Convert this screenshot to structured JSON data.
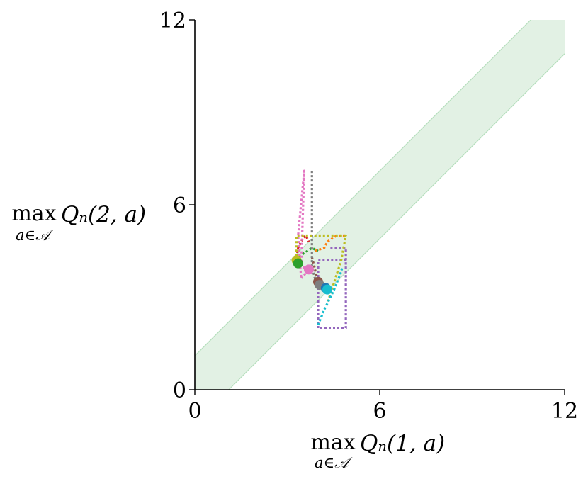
{
  "chart_data": {
    "type": "line",
    "xlim": [
      0,
      12
    ],
    "ylim": [
      0,
      12
    ],
    "x_ticks": [
      "0",
      "6",
      "12"
    ],
    "y_ticks": [
      "0",
      "6",
      "12"
    ],
    "xlabel": {
      "op": "max",
      "sub": "a∈𝒜",
      "expr": "Qₙ(1, a)"
    },
    "ylabel": {
      "op": "max",
      "sub": "a∈𝒜",
      "expr": "Qₙ(2, a)"
    },
    "band": {
      "color": "#cfe8d2",
      "edge_color": "#b6dfbd",
      "offset": 1.1
    },
    "grid": false,
    "legend": "none",
    "series": [
      {
        "color": "#1f77b4",
        "x": [
          4.3,
          4.3
        ],
        "y": [
          3.3,
          3.3
        ]
      },
      {
        "color": "#ff7f0e",
        "x": [
          3.9,
          4.2,
          4.3,
          4.6,
          4.9
        ],
        "y": [
          4.5,
          4.6,
          4.8,
          5.0,
          5.0
        ]
      },
      {
        "color": "#2ca02c",
        "x": [
          3.3,
          3.5,
          3.8,
          4.0
        ],
        "y": [
          4.2,
          4.4,
          4.6,
          4.5
        ]
      },
      {
        "color": "#d62728",
        "x": [
          3.3,
          3.35,
          3.5,
          3.6,
          3.7
        ],
        "y": [
          4.3,
          4.6,
          4.9,
          5.0,
          4.8
        ]
      },
      {
        "color": "#9467bd",
        "x": [
          4.4,
          4.9,
          4.9,
          4.0,
          4.0,
          4.9,
          4.9
        ],
        "y": [
          4.6,
          4.6,
          2.0,
          2.0,
          4.2,
          4.2,
          3.0
        ]
      },
      {
        "color": "#8c564b",
        "x": [
          3.8,
          3.9,
          4.0,
          4.1
        ],
        "y": [
          4.3,
          3.9,
          3.5,
          3.5
        ]
      },
      {
        "color": "#e377c2",
        "x": [
          3.7,
          3.45,
          3.55,
          3.35,
          3.45,
          3.5,
          3.8
        ],
        "y": [
          3.9,
          4.0,
          7.1,
          5.0,
          3.6,
          3.7,
          3.9
        ]
      },
      {
        "color": "#7f7f7f",
        "x": [
          3.8,
          3.8,
          3.9,
          4.0
        ],
        "y": [
          7.1,
          4.0,
          3.6,
          3.5
        ]
      },
      {
        "color": "#bcbd22",
        "x": [
          3.3,
          3.3,
          3.8,
          4.9,
          4.75,
          4.3
        ],
        "y": [
          4.2,
          5.0,
          5.0,
          5.0,
          4.2,
          2.8
        ]
      },
      {
        "color": "#17becf",
        "x": [
          4.0,
          4.2,
          4.5,
          4.7,
          4.8
        ],
        "y": [
          2.1,
          2.6,
          3.2,
          3.7,
          4.0
        ]
      }
    ],
    "points": [
      {
        "color": "#bcbd22",
        "x": 3.3,
        "y": 4.2
      },
      {
        "color": "#2ca02c",
        "x": 3.35,
        "y": 4.1
      },
      {
        "color": "#e377c2",
        "x": 3.7,
        "y": 3.9
      },
      {
        "color": "#8c564b",
        "x": 4.0,
        "y": 3.5
      },
      {
        "color": "#7f7f7f",
        "x": 4.05,
        "y": 3.4
      },
      {
        "color": "#1f77b4",
        "x": 4.25,
        "y": 3.3
      },
      {
        "color": "#17becf",
        "x": 4.3,
        "y": 3.25
      }
    ]
  }
}
